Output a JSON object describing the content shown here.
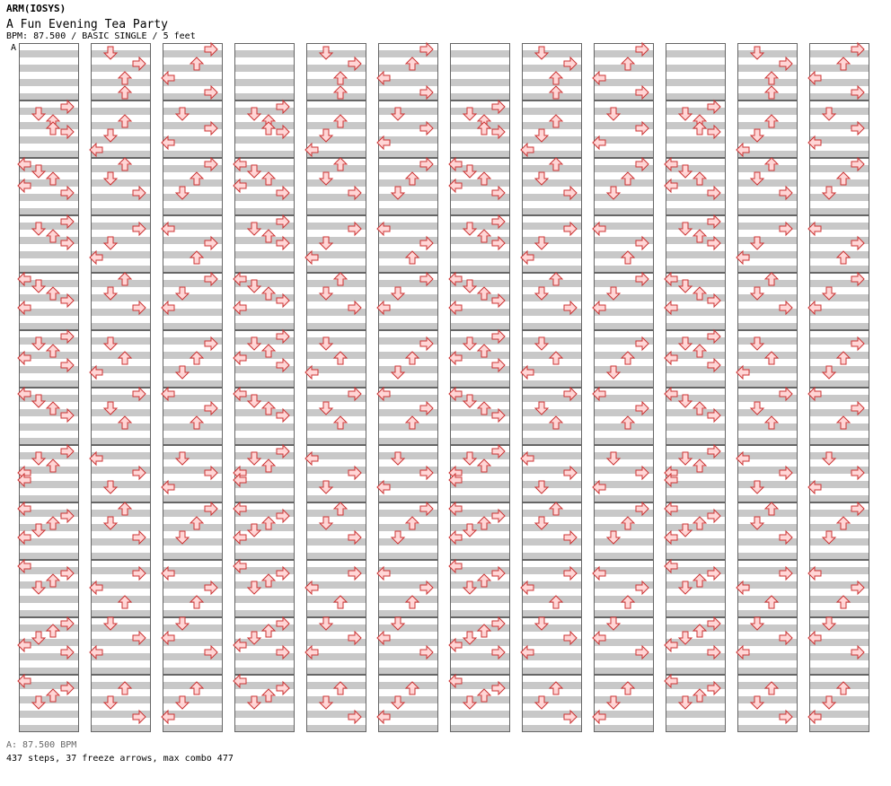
{
  "header": {
    "artist": "ARM(IOSYS)",
    "title": "A Fun Evening Tea Party",
    "info": "BPM: 87.500 / BASIC SINGLE / 5 feet",
    "marker": "A"
  },
  "footer": {
    "bpm_line": "A: 87.500 BPM",
    "stats_line": "437 steps, 37 freeze arrows, max combo 477"
  },
  "colors": {
    "band_gray": "#c8c8c8",
    "border": "#666666",
    "note_fill": "#ffd6d6",
    "note_stroke": "#cc3333",
    "blue_fill": "#74b4ee",
    "blue_stroke": "#2c6eb8",
    "freeze_fill": "#c8ffc8",
    "freeze_stroke": "#44aa44"
  },
  "icons": {
    "left": "left-arrow-icon",
    "down": "down-arrow-icon",
    "up": "up-arrow-icon",
    "right": "right-arrow-icon"
  },
  "chart": {
    "columns": 12,
    "measures_per_column": 12,
    "steps_per_measure": 16,
    "lane_order": [
      "left",
      "down",
      "up",
      "right"
    ],
    "notes": [
      [
        [
          1,
          0,
          3
        ],
        [
          1,
          2,
          1
        ],
        [
          1,
          4,
          2
        ],
        [
          1,
          6,
          2
        ],
        [
          1,
          7,
          3
        ],
        [
          2,
          0,
          0
        ],
        [
          2,
          2,
          1
        ],
        [
          2,
          4,
          2
        ],
        [
          2,
          6,
          0
        ],
        [
          2,
          8,
          3
        ],
        [
          3,
          0,
          3
        ],
        [
          3,
          2,
          1
        ],
        [
          3,
          4,
          2
        ],
        [
          3,
          6,
          3
        ],
        [
          4,
          0,
          0
        ],
        [
          4,
          2,
          1
        ],
        [
          4,
          4,
          2
        ],
        [
          4,
          6,
          3
        ],
        [
          4,
          8,
          0
        ],
        [
          5,
          0,
          3
        ],
        [
          5,
          2,
          1
        ],
        [
          5,
          4,
          2
        ],
        [
          5,
          6,
          0
        ],
        [
          5,
          8,
          3
        ],
        [
          6,
          0,
          0
        ],
        [
          6,
          2,
          1
        ],
        [
          6,
          4,
          2
        ],
        [
          6,
          6,
          3
        ],
        [
          7,
          0,
          3
        ],
        [
          7,
          2,
          1
        ],
        [
          7,
          4,
          2
        ],
        [
          7,
          6,
          0
        ],
        [
          7,
          8,
          0
        ],
        [
          8,
          0,
          0
        ],
        [
          8,
          2,
          3
        ],
        [
          8,
          4,
          2
        ],
        [
          8,
          6,
          1
        ],
        [
          8,
          8,
          0
        ],
        [
          9,
          0,
          0
        ],
        [
          9,
          2,
          3
        ],
        [
          9,
          4,
          2
        ],
        [
          9,
          6,
          1
        ],
        [
          10,
          0,
          3
        ],
        [
          10,
          2,
          2
        ],
        [
          10,
          4,
          1
        ],
        [
          10,
          6,
          0
        ],
        [
          10,
          8,
          3
        ],
        [
          11,
          0,
          0
        ],
        [
          11,
          2,
          3
        ],
        [
          11,
          4,
          2
        ],
        [
          11,
          6,
          1
        ],
        [
          12,
          0,
          0
        ],
        [
          12,
          2,
          3
        ],
        [
          12,
          4,
          2
        ],
        [
          12,
          6,
          1
        ]
      ],
      [
        [
          0,
          1,
          1
        ],
        [
          0,
          4,
          3
        ],
        [
          0,
          8,
          2
        ],
        [
          0,
          12,
          2
        ],
        [
          1,
          4,
          2
        ],
        [
          1,
          8,
          1
        ],
        [
          1,
          12,
          0
        ],
        [
          2,
          0,
          2
        ],
        [
          2,
          4,
          1
        ],
        [
          2,
          8,
          3
        ],
        [
          3,
          2,
          3
        ],
        [
          3,
          6,
          1
        ],
        [
          3,
          10,
          0
        ],
        [
          4,
          0,
          2
        ],
        [
          4,
          4,
          1
        ],
        [
          4,
          8,
          3
        ],
        [
          5,
          2,
          1
        ],
        [
          5,
          6,
          2
        ],
        [
          5,
          10,
          0
        ],
        [
          6,
          0,
          3
        ],
        [
          6,
          4,
          1
        ],
        [
          6,
          8,
          2
        ],
        [
          7,
          2,
          0
        ],
        [
          7,
          6,
          3
        ],
        [
          7,
          10,
          1
        ],
        [
          8,
          0,
          2
        ],
        [
          8,
          4,
          1
        ],
        [
          8,
          8,
          3
        ],
        [
          9,
          2,
          3
        ],
        [
          9,
          6,
          0
        ],
        [
          9,
          10,
          2
        ],
        [
          10,
          0,
          1
        ],
        [
          10,
          4,
          3
        ],
        [
          10,
          8,
          0
        ],
        [
          11,
          2,
          2
        ],
        [
          11,
          6,
          1
        ],
        [
          11,
          10,
          3
        ]
      ],
      [
        [
          0,
          0,
          3
        ],
        [
          0,
          4,
          2
        ],
        [
          0,
          8,
          0
        ],
        [
          0,
          12,
          3
        ],
        [
          1,
          2,
          1
        ],
        [
          1,
          6,
          3
        ],
        [
          1,
          10,
          0
        ],
        [
          2,
          0,
          3
        ],
        [
          2,
          4,
          2
        ],
        [
          2,
          8,
          1
        ],
        [
          3,
          2,
          0
        ],
        [
          3,
          6,
          3
        ],
        [
          3,
          10,
          2
        ],
        [
          4,
          0,
          3
        ],
        [
          4,
          4,
          1
        ],
        [
          4,
          8,
          0
        ],
        [
          5,
          2,
          3
        ],
        [
          5,
          6,
          2
        ],
        [
          5,
          10,
          1
        ],
        [
          6,
          0,
          0
        ],
        [
          6,
          4,
          3
        ],
        [
          6,
          8,
          2
        ],
        [
          7,
          2,
          1
        ],
        [
          7,
          6,
          3
        ],
        [
          7,
          10,
          0
        ],
        [
          8,
          0,
          3
        ],
        [
          8,
          4,
          2
        ],
        [
          8,
          8,
          1
        ],
        [
          9,
          2,
          0
        ],
        [
          9,
          6,
          3
        ],
        [
          9,
          10,
          2
        ],
        [
          10,
          0,
          1
        ],
        [
          10,
          4,
          0
        ],
        [
          10,
          8,
          3
        ],
        [
          11,
          2,
          2
        ],
        [
          11,
          6,
          1
        ],
        [
          11,
          10,
          0
        ]
      ]
    ]
  }
}
